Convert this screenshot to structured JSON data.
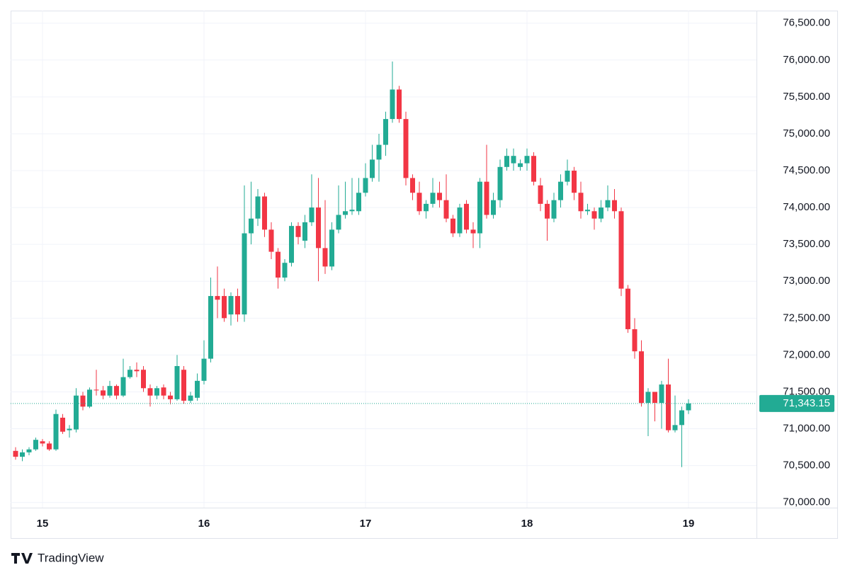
{
  "chart_data": {
    "type": "candlestick",
    "categories": [
      null,
      null,
      null,
      null,
      "15",
      null,
      null,
      null,
      null,
      null,
      null,
      null,
      null,
      null,
      null,
      null,
      null,
      null,
      null,
      null,
      null,
      null,
      null,
      null,
      null,
      null,
      null,
      null,
      "16",
      null,
      null,
      null,
      null,
      null,
      null,
      null,
      null,
      null,
      null,
      null,
      null,
      null,
      null,
      null,
      null,
      null,
      null,
      null,
      null,
      null,
      null,
      null,
      "17",
      null,
      null,
      null,
      null,
      null,
      null,
      null,
      null,
      null,
      null,
      null,
      null,
      null,
      null,
      null,
      null,
      null,
      null,
      null,
      null,
      null,
      null,
      null,
      "18",
      null,
      null,
      null,
      null,
      null,
      null,
      null,
      null,
      null,
      null,
      null,
      null,
      null,
      null,
      null,
      null,
      null,
      null,
      null,
      null,
      null,
      null,
      null,
      "19"
    ],
    "open": [
      70700,
      70620,
      70680,
      70720,
      70830,
      70800,
      70720,
      71150,
      70980,
      70990,
      71450,
      71300,
      71530,
      71520,
      71450,
      71580,
      71450,
      71700,
      71800,
      71800,
      71550,
      71450,
      71560,
      71450,
      71400,
      71800,
      71380,
      71420,
      71650,
      71950,
      72800,
      72800,
      72550,
      72800,
      72550,
      73650,
      73850,
      74150,
      73700,
      73400,
      73050,
      73250,
      73750,
      73550,
      73800,
      74000,
      73450,
      73200,
      73700,
      73900,
      73950,
      73950,
      74200,
      74400,
      74650,
      74850,
      75200,
      75600,
      75200,
      74400,
      74200,
      73950,
      74050,
      74200,
      74100,
      73850,
      73650,
      74050,
      73700,
      73650,
      74350,
      73900,
      74100,
      74550,
      74600,
      74550,
      74600,
      74700,
      74300,
      74050,
      73850,
      74100,
      74350,
      74500,
      74200,
      73950,
      73950,
      73850,
      74000,
      74100,
      73950,
      72900,
      72350,
      72050,
      71350,
      71500,
      71350,
      71600,
      70980,
      71050,
      71250
    ],
    "high": [
      70750,
      70720,
      70750,
      70880,
      70860,
      70830,
      71260,
      71200,
      71050,
      71550,
      71500,
      71560,
      71800,
      71580,
      71650,
      71600,
      71950,
      71850,
      71900,
      71850,
      71600,
      71580,
      71600,
      71500,
      72000,
      71850,
      71500,
      71750,
      72200,
      73050,
      73200,
      72900,
      72850,
      72900,
      74300,
      74350,
      74250,
      74200,
      73800,
      73450,
      73300,
      73800,
      73800,
      73900,
      74450,
      74400,
      74100,
      73800,
      74300,
      74350,
      74400,
      74400,
      74600,
      74850,
      75000,
      75300,
      75980,
      75650,
      75300,
      74450,
      74350,
      74100,
      74400,
      74350,
      74450,
      73900,
      74050,
      74100,
      73800,
      74400,
      74850,
      74200,
      74650,
      74800,
      74800,
      74650,
      74800,
      74750,
      74400,
      74100,
      74200,
      74450,
      74650,
      74550,
      74350,
      74050,
      74000,
      74100,
      74300,
      74250,
      74000,
      72950,
      72500,
      72200,
      71550,
      71500,
      71650,
      71950,
      71450,
      71300,
      71400
    ],
    "low": [
      70580,
      70560,
      70640,
      70700,
      70760,
      70700,
      70700,
      70930,
      70880,
      70950,
      71250,
      71280,
      71450,
      71400,
      71420,
      71400,
      71430,
      71680,
      71700,
      71500,
      71300,
      71400,
      71400,
      71330,
      71380,
      71340,
      71350,
      71380,
      71600,
      71900,
      72500,
      72450,
      72400,
      72450,
      72450,
      73500,
      73750,
      73600,
      73300,
      72900,
      73000,
      73200,
      73500,
      73450,
      73750,
      73000,
      73100,
      73150,
      73650,
      73850,
      73900,
      73900,
      74150,
      74350,
      74350,
      74700,
      75150,
      75150,
      74300,
      74100,
      73900,
      73850,
      74000,
      74000,
      73800,
      73600,
      73600,
      73650,
      73450,
      73450,
      73850,
      73850,
      74000,
      74500,
      74500,
      74500,
      74500,
      74300,
      73950,
      73550,
      73800,
      74000,
      74300,
      74100,
      73850,
      73900,
      73700,
      73800,
      73950,
      73850,
      72800,
      72300,
      71950,
      71300,
      70900,
      71100,
      71000,
      70950,
      70950,
      70480,
      71200
    ],
    "close": [
      70620,
      70680,
      70720,
      70850,
      70800,
      70720,
      71200,
      70960,
      71000,
      71450,
      71300,
      71530,
      71520,
      71450,
      71580,
      71450,
      71700,
      71800,
      71780,
      71550,
      71450,
      71550,
      71450,
      71400,
      71850,
      71380,
      71450,
      71650,
      71950,
      72800,
      72750,
      72500,
      72800,
      72550,
      73650,
      73850,
      74150,
      73700,
      73400,
      73050,
      73250,
      73750,
      73600,
      73800,
      74000,
      73450,
      73200,
      73700,
      73900,
      73950,
      73970,
      74200,
      74400,
      74650,
      74850,
      75200,
      75600,
      75200,
      74400,
      74200,
      73950,
      74050,
      74200,
      74100,
      73850,
      73650,
      74000,
      73700,
      73650,
      74350,
      73900,
      74100,
      74550,
      74700,
      74700,
      74600,
      74700,
      74350,
      74050,
      73850,
      74100,
      74350,
      74500,
      74200,
      73950,
      73970,
      73850,
      74000,
      74100,
      73950,
      72900,
      72350,
      72050,
      71350,
      71500,
      71350,
      71600,
      70980,
      71050,
      71250,
      71343.15
    ],
    "up_color": "#22ab94",
    "down_color": "#f23645",
    "ylim": [
      69930,
      76670
    ],
    "yticks": [
      {
        "value": 70000,
        "label": "70,000.00"
      },
      {
        "value": 70500,
        "label": "70,500.00"
      },
      {
        "value": 71000,
        "label": "71,000.00"
      },
      {
        "value": 71500,
        "label": "71,500.00"
      },
      {
        "value": 72000,
        "label": "72,000.00"
      },
      {
        "value": 72500,
        "label": "72,500.00"
      },
      {
        "value": 73000,
        "label": "73,000.00"
      },
      {
        "value": 73500,
        "label": "73,500.00"
      },
      {
        "value": 74000,
        "label": "74,000.00"
      },
      {
        "value": 74500,
        "label": "74,500.00"
      },
      {
        "value": 75000,
        "label": "75,000.00"
      },
      {
        "value": 75500,
        "label": "75,500.00"
      },
      {
        "value": 76000,
        "label": "76,000.00"
      },
      {
        "value": 76500,
        "label": "76,500.00"
      }
    ],
    "grid": true,
    "last_price": {
      "value": 71343.15,
      "label": "71,343.15"
    }
  },
  "branding": "TradingView"
}
